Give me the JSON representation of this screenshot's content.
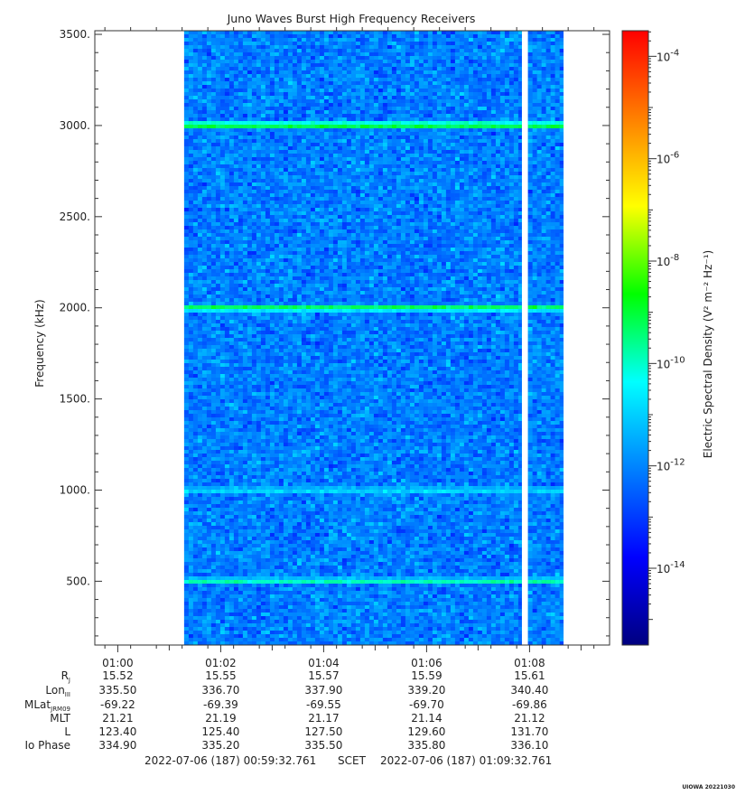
{
  "chart_data": {
    "type": "heatmap",
    "title": "Juno Waves Burst High Frequency Receivers",
    "ylabel": "Frequency (kHz)",
    "ylim": [
      150,
      3520
    ],
    "yticks": [
      {
        "value": 500,
        "label": "500."
      },
      {
        "value": 1000,
        "label": "1000."
      },
      {
        "value": 1500,
        "label": "1500."
      },
      {
        "value": 2000,
        "label": "2000."
      },
      {
        "value": 2500,
        "label": "2500."
      },
      {
        "value": 3000,
        "label": "3000."
      },
      {
        "value": 3500,
        "label": "3500."
      }
    ],
    "xrange_min": [
      59.5544,
      69.5544
    ],
    "xticks": [
      {
        "min": 60,
        "label": "01:00"
      },
      {
        "min": 62,
        "label": "01:02"
      },
      {
        "min": 64,
        "label": "01:04"
      },
      {
        "min": 66,
        "label": "01:06"
      },
      {
        "min": 68,
        "label": "01:08"
      }
    ],
    "data_segments_min": [
      [
        61.29,
        67.85
      ],
      [
        67.97,
        68.66
      ]
    ],
    "background_level_exp": -12.1,
    "emission_lines": [
      {
        "freq_khz": 3000,
        "level_exp": -9.0
      },
      {
        "freq_khz": 2000,
        "level_exp": -9.2
      },
      {
        "freq_khz": 1000,
        "level_exp": -10.6
      },
      {
        "freq_khz": 500,
        "level_exp": -9.8
      }
    ],
    "colorbar": {
      "label": "Electric Spectral Density (V² m⁻² Hz⁻¹)",
      "min_exp": -15.5,
      "max_exp": -3.5,
      "ticks": [
        {
          "exp": -4,
          "label": "-4"
        },
        {
          "exp": -6,
          "label": "-6"
        },
        {
          "exp": -8,
          "label": "-8"
        },
        {
          "exp": -10,
          "label": "-10"
        },
        {
          "exp": -12,
          "label": "-12"
        },
        {
          "exp": -14,
          "label": "-14"
        }
      ],
      "colors": [
        "#000080",
        "#0000ff",
        "#0080ff",
        "#00ffff",
        "#00ff00",
        "#ffff00",
        "#ff8000",
        "#ff0000"
      ]
    },
    "ephemeris": {
      "row_labels": [
        "R",
        "Lon",
        "MLat",
        "MLT",
        "L",
        "Io Phase"
      ],
      "row_subscripts": [
        "J",
        "III",
        "JRM09",
        "",
        "",
        ""
      ],
      "rows": [
        [
          "15.52",
          "15.55",
          "15.57",
          "15.59",
          "15.61"
        ],
        [
          "335.50",
          "336.70",
          "337.90",
          "339.20",
          "340.40"
        ],
        [
          "-69.22",
          "-69.39",
          "-69.55",
          "-69.70",
          "-69.86"
        ],
        [
          "21.21",
          "21.19",
          "21.17",
          "21.14",
          "21.12"
        ],
        [
          "123.40",
          "125.40",
          "127.50",
          "129.60",
          "131.70"
        ],
        [
          "334.90",
          "335.20",
          "335.50",
          "335.80",
          "336.10"
        ]
      ]
    },
    "time_range": {
      "start": "2022-07-06 (187) 00:59:32.761",
      "label": "SCET",
      "end": "2022-07-06 (187) 01:09:32.761"
    }
  },
  "footer": {
    "stamp": "UIOWA 20221030"
  }
}
